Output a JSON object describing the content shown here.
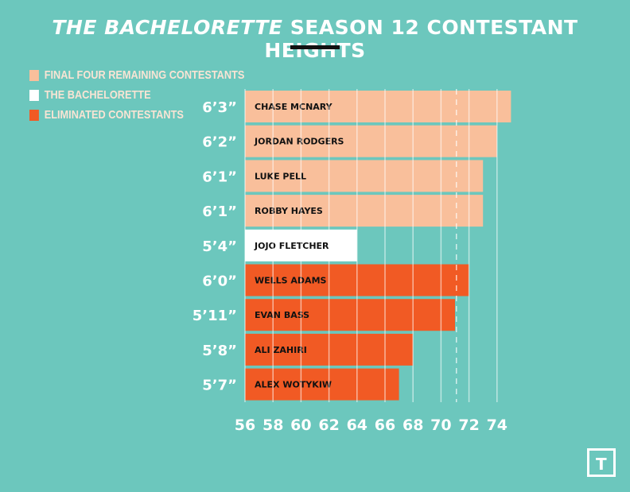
{
  "title_italic": "THE BACHELORETTE",
  "title_rest": " SEASON 12 CONTESTANT HEIGHTS",
  "legend": [
    {
      "label": "FINAL FOUR REMAINING CONTESTANTS",
      "color": "#f9bf9b"
    },
    {
      "label": "THE BACHELORETTE",
      "color": "#ffffff"
    },
    {
      "label": "ELIMINATED CONTESTANTS",
      "color": "#f15a24"
    }
  ],
  "chart_data": {
    "type": "bar",
    "orientation": "horizontal",
    "xlim": [
      56,
      75
    ],
    "xticks": [
      56,
      58,
      60,
      62,
      64,
      66,
      68,
      70,
      72,
      74
    ],
    "grid": true,
    "legend_position": "top-left",
    "reference_line_x": 71.1,
    "bars": [
      {
        "name": "CHASE MCNARY",
        "height_label": "6’3”",
        "value": 75,
        "group": "FINAL FOUR REMAINING CONTESTANTS"
      },
      {
        "name": "JORDAN RODGERS",
        "height_label": "6’2”",
        "value": 74,
        "group": "FINAL FOUR REMAINING CONTESTANTS"
      },
      {
        "name": "LUKE PELL",
        "height_label": "6’1”",
        "value": 73,
        "group": "FINAL FOUR REMAINING CONTESTANTS"
      },
      {
        "name": "ROBBY HAYES",
        "height_label": "6’1”",
        "value": 73,
        "group": "FINAL FOUR REMAINING CONTESTANTS"
      },
      {
        "name": "JOJO FLETCHER",
        "height_label": "5’4”",
        "value": 64,
        "group": "THE BACHELORETTE"
      },
      {
        "name": "WELLS ADAMS",
        "height_label": "6’0”",
        "value": 72,
        "group": "ELIMINATED CONTESTANTS"
      },
      {
        "name": "EVAN BASS",
        "height_label": "5’11”",
        "value": 71,
        "group": "ELIMINATED CONTESTANTS"
      },
      {
        "name": "ALI ZAHIRI",
        "height_label": "5’8”",
        "value": 68,
        "group": "ELIMINATED CONTESTANTS"
      },
      {
        "name": "ALEX WOTYKIW",
        "height_label": "5’7”",
        "value": 67,
        "group": "ELIMINATED CONTESTANTS"
      }
    ]
  },
  "logo": "T"
}
